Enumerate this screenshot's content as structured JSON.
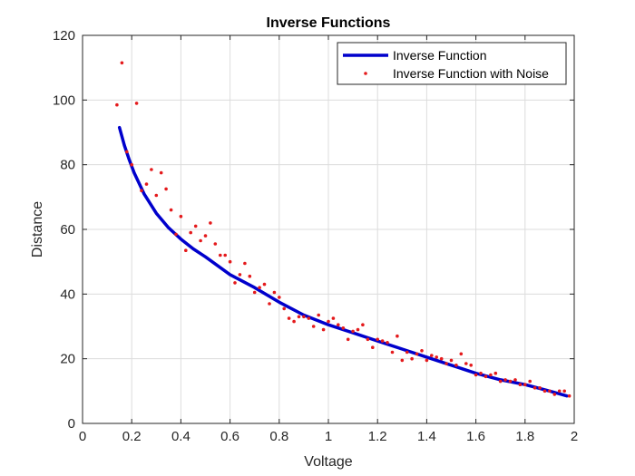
{
  "chart_data": {
    "type": "line",
    "title": "Inverse Functions",
    "xlabel": "Voltage",
    "ylabel": "Distance",
    "xlim": [
      0,
      2
    ],
    "ylim": [
      0,
      120
    ],
    "xticks": [
      0,
      0.2,
      0.4,
      0.6,
      0.8,
      1,
      1.2,
      1.4,
      1.6,
      1.8,
      2
    ],
    "yticks": [
      0,
      20,
      40,
      60,
      80,
      100,
      120
    ],
    "grid": true,
    "legend_position": "top-right",
    "colors": {
      "line": "#0000cc",
      "noise": "#e41a1c"
    },
    "series": [
      {
        "name": "Inverse Function",
        "style": "line",
        "x": [
          0.15,
          0.17,
          0.19,
          0.21,
          0.25,
          0.3,
          0.35,
          0.4,
          0.45,
          0.5,
          0.6,
          0.7,
          0.8,
          0.9,
          1.0,
          1.1,
          1.2,
          1.3,
          1.4,
          1.5,
          1.6,
          1.7,
          1.8,
          1.9,
          1.97
        ],
        "y": [
          91.5,
          86,
          81.5,
          77.5,
          71,
          65,
          60.5,
          57,
          54,
          51.5,
          46,
          42,
          37.5,
          33.5,
          30.5,
          28,
          25.5,
          23,
          20.5,
          18,
          15.5,
          13.5,
          12,
          10,
          8.5
        ]
      },
      {
        "name": "Inverse Function with Noise",
        "style": "points",
        "x": [
          0.14,
          0.16,
          0.18,
          0.2,
          0.22,
          0.24,
          0.26,
          0.28,
          0.3,
          0.32,
          0.34,
          0.36,
          0.38,
          0.4,
          0.42,
          0.44,
          0.46,
          0.48,
          0.5,
          0.52,
          0.54,
          0.56,
          0.58,
          0.6,
          0.62,
          0.64,
          0.66,
          0.68,
          0.7,
          0.72,
          0.74,
          0.76,
          0.78,
          0.8,
          0.82,
          0.84,
          0.86,
          0.88,
          0.9,
          0.92,
          0.94,
          0.96,
          0.98,
          1.0,
          1.02,
          1.04,
          1.06,
          1.08,
          1.1,
          1.12,
          1.14,
          1.16,
          1.18,
          1.2,
          1.22,
          1.24,
          1.26,
          1.28,
          1.3,
          1.32,
          1.34,
          1.36,
          1.38,
          1.4,
          1.42,
          1.44,
          1.46,
          1.48,
          1.5,
          1.52,
          1.54,
          1.56,
          1.58,
          1.6,
          1.62,
          1.64,
          1.66,
          1.68,
          1.7,
          1.72,
          1.74,
          1.76,
          1.78,
          1.8,
          1.82,
          1.84,
          1.86,
          1.88,
          1.9,
          1.92,
          1.94,
          1.96,
          1.98
        ],
        "y": [
          98.5,
          111.5,
          84,
          80,
          99,
          72,
          74,
          78.5,
          70.5,
          77.5,
          72.5,
          66,
          58.5,
          64,
          53.5,
          59,
          61,
          56.5,
          58,
          62,
          55.5,
          52,
          52,
          50,
          43.5,
          46,
          49.5,
          45.5,
          40.5,
          42,
          43,
          37,
          40.5,
          39,
          35.5,
          32.5,
          31.5,
          33,
          33,
          32.5,
          30,
          33.5,
          29,
          31.5,
          32.5,
          30.5,
          29.5,
          26,
          28.5,
          29,
          30.5,
          26,
          23.5,
          26,
          25.5,
          25,
          22,
          27,
          19.5,
          22,
          20,
          21.5,
          22.5,
          19.5,
          21,
          20.5,
          20,
          18.5,
          19.5,
          18,
          21.5,
          18.5,
          18,
          15,
          15.5,
          14.5,
          15,
          15.5,
          13,
          13.5,
          13,
          13.5,
          12,
          12,
          13,
          11,
          11,
          10,
          10,
          9,
          10,
          10,
          8.5
        ]
      }
    ]
  }
}
